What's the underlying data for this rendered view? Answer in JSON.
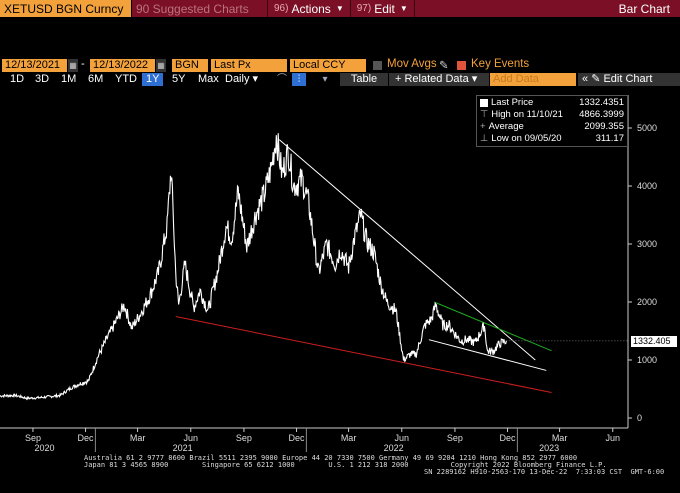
{
  "toolbar": {
    "ticker": "XETUSD BGN Curncy",
    "suggested": "90 Suggested Charts",
    "actions_num": "96)",
    "actions_label": "Actions",
    "edit_num": "97)",
    "edit_label": "Edit",
    "bar_chart": "Bar Chart"
  },
  "settings": {
    "start_date": "12/13/2021",
    "end_date": "12/13/2022",
    "source": "BGN",
    "field": "Last Px",
    "currency": "Local CCY",
    "mov_avgs": "Mov Avgs",
    "key_events": "Key Events"
  },
  "timeframes": [
    "1D",
    "3D",
    "1M",
    "6M",
    "YTD",
    "1Y",
    "5Y",
    "Max"
  ],
  "active_timeframe": "1Y",
  "frequency": "Daily",
  "buttons": {
    "table": "Table",
    "related": "+ Related Data",
    "add_data": "Add Data",
    "edit_chart": "Edit Chart"
  },
  "legend": {
    "last_label": "Last Price",
    "last_value": "1332.4351",
    "high_label": "High on 11/10/21",
    "high_value": "4866.3999",
    "avg_label": "Average",
    "avg_value": "2099.355",
    "low_label": "Low on 09/05/20",
    "low_value": "311.17"
  },
  "price_tag": "1332.405",
  "footer": {
    "line1": "Australia 61 2 9777 8600 Brazil 5511 2395 9000 Europe 44 20 7330 7500 Germany 49 69 9204 1210 Hong Kong 852 2977 6000",
    "line2": "Japan 81 3 4565 8900        Singapore 65 6212 1000        U.S. 1 212 318 2000          Copyright 2022 Bloomberg Finance L.P.",
    "line3": "SN 2289162 H910-2563-170 13-Dec-22  7:33:03 CST  GMT-6:00"
  },
  "colors": {
    "accent": "#f3a13b",
    "header": "#7a0f25",
    "active": "#2e6fd3"
  },
  "chart_data": {
    "type": "line",
    "title": "XETUSD BGN Curncy",
    "ylim": [
      0,
      5500
    ],
    "yticks": [
      0,
      1000,
      2000,
      3000,
      4000,
      5000
    ],
    "x_tick_labels": [
      "Sep",
      "Dec",
      "Mar",
      "Jun",
      "Sep",
      "Dec",
      "Mar",
      "Jun",
      "Sep",
      "Dec",
      "Mar",
      "Jun"
    ],
    "year_labels": [
      "2020",
      "2021",
      "2022",
      "2023"
    ],
    "series": [
      {
        "name": "Last Price",
        "points": [
          [
            "2020-07-20",
            380
          ],
          [
            "2020-08-15",
            390
          ],
          [
            "2020-09-05",
            340
          ],
          [
            "2020-09-25",
            350
          ],
          [
            "2020-10-15",
            370
          ],
          [
            "2020-11-01",
            390
          ],
          [
            "2020-11-20",
            520
          ],
          [
            "2020-12-05",
            590
          ],
          [
            "2020-12-20",
            640
          ],
          [
            "2021-01-05",
            1050
          ],
          [
            "2021-01-20",
            1350
          ],
          [
            "2021-02-05",
            1650
          ],
          [
            "2021-02-20",
            1950
          ],
          [
            "2021-03-05",
            1550
          ],
          [
            "2021-03-20",
            1800
          ],
          [
            "2021-04-05",
            2100
          ],
          [
            "2021-04-20",
            2500
          ],
          [
            "2021-05-05",
            3300
          ],
          [
            "2021-05-12",
            4300
          ],
          [
            "2021-05-20",
            2500
          ],
          [
            "2021-05-25",
            1950
          ],
          [
            "2021-06-05",
            2650
          ],
          [
            "2021-06-20",
            1900
          ],
          [
            "2021-07-01",
            2200
          ],
          [
            "2021-07-15",
            1850
          ],
          [
            "2021-08-01",
            2550
          ],
          [
            "2021-08-15",
            3300
          ],
          [
            "2021-08-25",
            3100
          ],
          [
            "2021-09-05",
            3900
          ],
          [
            "2021-09-20",
            2950
          ],
          [
            "2021-10-05",
            3500
          ],
          [
            "2021-10-20",
            3850
          ],
          [
            "2021-11-01",
            4300
          ],
          [
            "2021-11-10",
            4866
          ],
          [
            "2021-11-20",
            4200
          ],
          [
            "2021-12-01",
            4600
          ],
          [
            "2021-12-10",
            4000
          ],
          [
            "2021-12-25",
            4100
          ],
          [
            "2022-01-05",
            3700
          ],
          [
            "2022-01-22",
            2500
          ],
          [
            "2022-02-05",
            3000
          ],
          [
            "2022-02-20",
            2650
          ],
          [
            "2022-03-01",
            2900
          ],
          [
            "2022-03-15",
            2600
          ],
          [
            "2022-03-25",
            3100
          ],
          [
            "2022-04-05",
            3500
          ],
          [
            "2022-04-15",
            3050
          ],
          [
            "2022-04-28",
            2850
          ],
          [
            "2022-05-10",
            2300
          ],
          [
            "2022-05-20",
            2000
          ],
          [
            "2022-06-05",
            1850
          ],
          [
            "2022-06-18",
            1000
          ],
          [
            "2022-06-30",
            1100
          ],
          [
            "2022-07-10",
            1100
          ],
          [
            "2022-07-25",
            1600
          ],
          [
            "2022-08-05",
            1700
          ],
          [
            "2022-08-13",
            1950
          ],
          [
            "2022-08-25",
            1600
          ],
          [
            "2022-09-05",
            1600
          ],
          [
            "2022-09-15",
            1450
          ],
          [
            "2022-09-25",
            1330
          ],
          [
            "2022-10-05",
            1350
          ],
          [
            "2022-10-20",
            1300
          ],
          [
            "2022-11-05",
            1600
          ],
          [
            "2022-11-10",
            1150
          ],
          [
            "2022-11-20",
            1150
          ],
          [
            "2022-12-01",
            1280
          ],
          [
            "2022-12-13",
            1332
          ]
        ]
      }
    ],
    "trendlines": [
      {
        "color": "#ffffff",
        "from": [
          "2021-11-15",
          4800
        ],
        "to": [
          "2023-02-01",
          1000
        ]
      },
      {
        "color": "#ffffff",
        "from": [
          "2022-08-01",
          1350
        ],
        "to": [
          "2023-02-20",
          820
        ]
      },
      {
        "color": "#1faa1f",
        "from": [
          "2022-08-10",
          2000
        ],
        "to": [
          "2023-03-01",
          1160
        ]
      },
      {
        "color": "#cc1f1f",
        "from": [
          "2021-05-20",
          1750
        ],
        "to": [
          "2023-03-01",
          440
        ]
      }
    ]
  }
}
